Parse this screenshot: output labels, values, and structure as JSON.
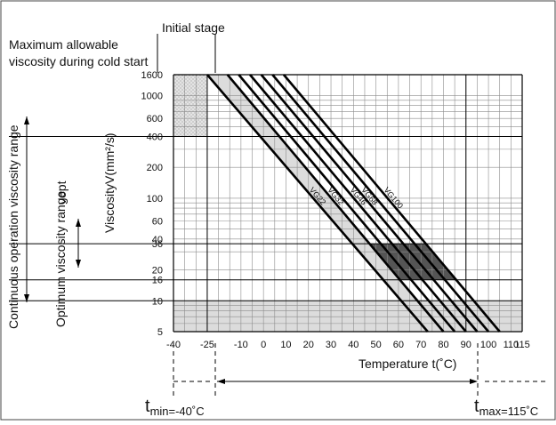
{
  "labels": {
    "initial_stage": "Initial stage",
    "max_viscosity_line1": "Maximum allowable",
    "max_viscosity_line2": "viscosity during cold start",
    "continuous_range": "Continuous operation viscosity range",
    "optimum_range": "Optimum viscosity range",
    "nu_opt": "νopt",
    "y_axis": "Viscosity",
    "y_unit": "V(mm²/s)",
    "x_axis": "Temperature  t(˚C)",
    "t_min_main": "t",
    "t_min_sub": "min=-40˚C",
    "t_max_main": "t",
    "t_max_sub": "max=115˚C"
  },
  "chart_data": {
    "type": "line",
    "x_scale": "linear",
    "y_scale": "log",
    "xlim": [
      -40,
      115
    ],
    "ylim": [
      5,
      1600
    ],
    "x_ticks": [
      "-40",
      "-25",
      "-10",
      "0",
      "10",
      "20",
      "30",
      "40",
      "50",
      "60",
      "70",
      "80",
      "90",
      "100",
      "110",
      "115"
    ],
    "y_ticks": [
      "1600",
      "1000",
      "600",
      "400",
      "200",
      "100",
      "60",
      "40",
      "36",
      "20",
      "16",
      "10",
      "5"
    ],
    "grid": true,
    "series": [
      {
        "name": "VG22",
        "points": [
          [
            -25,
            1600
          ],
          [
            73,
            5
          ]
        ]
      },
      {
        "name": "VG32",
        "points": [
          [
            -16,
            1600
          ],
          [
            80,
            5
          ]
        ]
      },
      {
        "name": "",
        "points": [
          [
            -11,
            1600
          ],
          [
            85,
            5
          ]
        ]
      },
      {
        "name": "VG46",
        "points": [
          [
            -6,
            1600
          ],
          [
            90,
            5
          ]
        ]
      },
      {
        "name": "VG68",
        "points": [
          [
            -1,
            1600
          ],
          [
            95,
            5
          ]
        ]
      },
      {
        "name": "",
        "points": [
          [
            4,
            1600
          ],
          [
            100,
            5
          ]
        ]
      },
      {
        "name": "VG100",
        "points": [
          [
            9,
            1600
          ],
          [
            105,
            5
          ]
        ]
      }
    ],
    "regions": [
      {
        "kind": "cold-start",
        "x": [
          -40,
          -25
        ],
        "y": [
          400,
          1600
        ]
      },
      {
        "kind": "band-low",
        "x": [
          -40,
          115
        ],
        "y": [
          5,
          10
        ]
      },
      {
        "kind": "optimum",
        "y": [
          16,
          36
        ]
      }
    ],
    "reference_lines": {
      "horizontal": [
        400,
        36,
        16,
        10
      ],
      "vertical": [
        -25,
        90
      ]
    },
    "temperature_limits": {
      "t_min": -40,
      "t_max": 115
    }
  },
  "colors": {
    "line": "#000000",
    "grid": "#8c8c8c",
    "band_light": "#dcdcdc",
    "band_dark": "#555555",
    "cold_start_fill": "#d9d9d9"
  }
}
